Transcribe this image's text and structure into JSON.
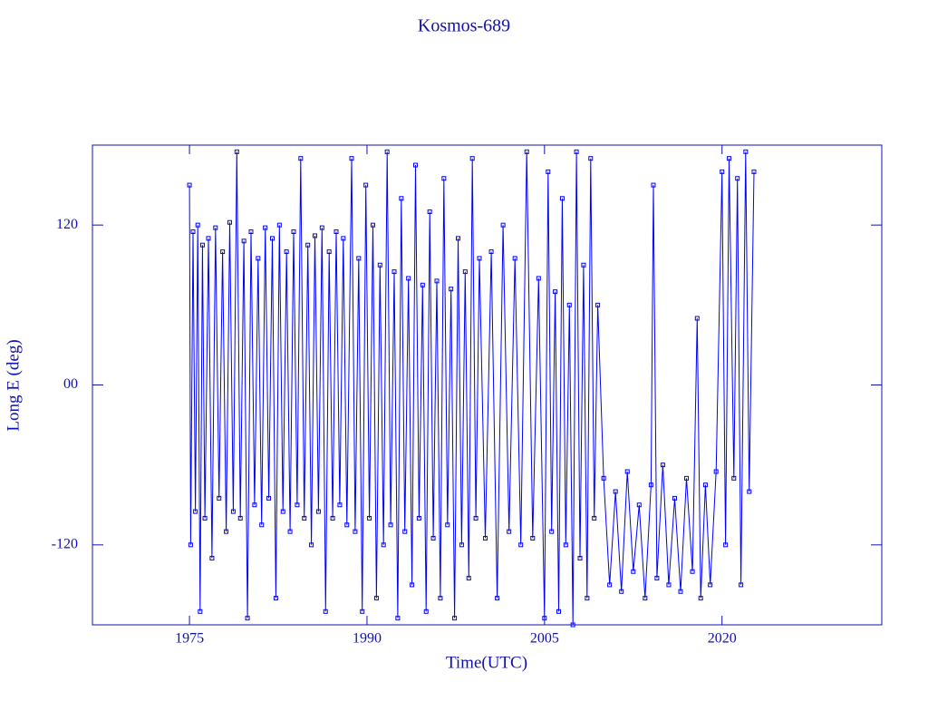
{
  "chart_data": {
    "type": "line",
    "title": "Kosmos-689",
    "x_label": "Time(UTC)",
    "y_label": "Long E (deg)",
    "color": "#0000ff",
    "xlim": [
      1966.8,
      2033.5
    ],
    "xticks": [
      1975,
      1990,
      2005,
      2020
    ],
    "ylim": [
      -180,
      180
    ],
    "yticks": [
      -120,
      {
        "value": 0,
        "label": "00"
      },
      120
    ],
    "x": [
      1975.0,
      1975.1,
      1975.3,
      1975.5,
      1975.7,
      1975.9,
      1976.1,
      1976.3,
      1976.6,
      1976.9,
      1977.2,
      1977.5,
      1977.8,
      1978.1,
      1978.4,
      1978.7,
      1979.0,
      1979.3,
      1979.6,
      1979.9,
      1980.2,
      1980.5,
      1980.8,
      1981.1,
      1981.4,
      1981.7,
      1982.0,
      1982.3,
      1982.6,
      1982.9,
      1983.2,
      1983.5,
      1983.8,
      1984.1,
      1984.4,
      1984.7,
      1985.0,
      1985.3,
      1985.6,
      1985.9,
      1986.2,
      1986.5,
      1986.8,
      1987.1,
      1987.4,
      1987.7,
      1988.0,
      1988.3,
      1988.7,
      1989.0,
      1989.3,
      1989.6,
      1989.9,
      1990.2,
      1990.5,
      1990.8,
      1991.1,
      1991.4,
      1991.7,
      1992.0,
      1992.3,
      1992.6,
      1992.9,
      1993.2,
      1993.5,
      1993.8,
      1994.1,
      1994.4,
      1994.7,
      1995.0,
      1995.3,
      1995.6,
      1995.9,
      1996.2,
      1996.5,
      1996.8,
      1997.1,
      1997.4,
      1997.7,
      1998.0,
      1998.3,
      1998.6,
      1998.9,
      1999.2,
      1999.5,
      2000.0,
      2000.5,
      2001.0,
      2001.5,
      2002.0,
      2002.5,
      2003.0,
      2003.5,
      2004.0,
      2004.5,
      2005.0,
      2005.3,
      2005.6,
      2005.9,
      2006.2,
      2006.5,
      2006.8,
      2007.1,
      2007.4,
      2007.7,
      2008.0,
      2008.3,
      2008.6,
      2008.9,
      2009.2,
      2009.5,
      2010.0,
      2010.5,
      2011.0,
      2011.5,
      2012.0,
      2012.5,
      2013.0,
      2013.5,
      2014.0,
      2014.2,
      2014.5,
      2015.0,
      2015.5,
      2016.0,
      2016.5,
      2017.0,
      2017.5,
      2017.9,
      2018.2,
      2018.6,
      2019.0,
      2019.5,
      2020.0,
      2020.3,
      2020.6,
      2021.0,
      2021.3,
      2021.6,
      2022.0,
      2022.3,
      2022.7
    ],
    "values": [
      150,
      -120,
      115,
      -95,
      120,
      -170,
      105,
      -100,
      110,
      -130,
      118,
      -85,
      100,
      -110,
      122,
      -95,
      175,
      -100,
      108,
      -175,
      115,
      -90,
      95,
      -105,
      118,
      -85,
      110,
      -160,
      120,
      -95,
      100,
      -110,
      115,
      -90,
      170,
      -100,
      105,
      -120,
      112,
      -95,
      118,
      -170,
      100,
      -100,
      115,
      -90,
      110,
      -105,
      170,
      -110,
      95,
      -170,
      150,
      -100,
      120,
      -160,
      90,
      -120,
      175,
      -105,
      85,
      -175,
      140,
      -110,
      80,
      -150,
      165,
      -100,
      75,
      -170,
      130,
      -115,
      78,
      -160,
      155,
      -105,
      72,
      -175,
      110,
      -120,
      85,
      -145,
      170,
      -100,
      95,
      -115,
      100,
      -160,
      120,
      -110,
      95,
      -120,
      175,
      -115,
      80,
      -175,
      160,
      -110,
      70,
      -170,
      140,
      -120,
      60,
      -180,
      175,
      -130,
      90,
      -160,
      170,
      -100,
      60,
      -70,
      -150,
      -80,
      -155,
      -65,
      -140,
      -90,
      -160,
      -75,
      150,
      -145,
      -60,
      -150,
      -85,
      -155,
      -70,
      -140,
      50,
      -160,
      -75,
      -150,
      -65,
      160,
      -120,
      170,
      -70,
      155,
      -150,
      175,
      -80,
      160
    ]
  }
}
